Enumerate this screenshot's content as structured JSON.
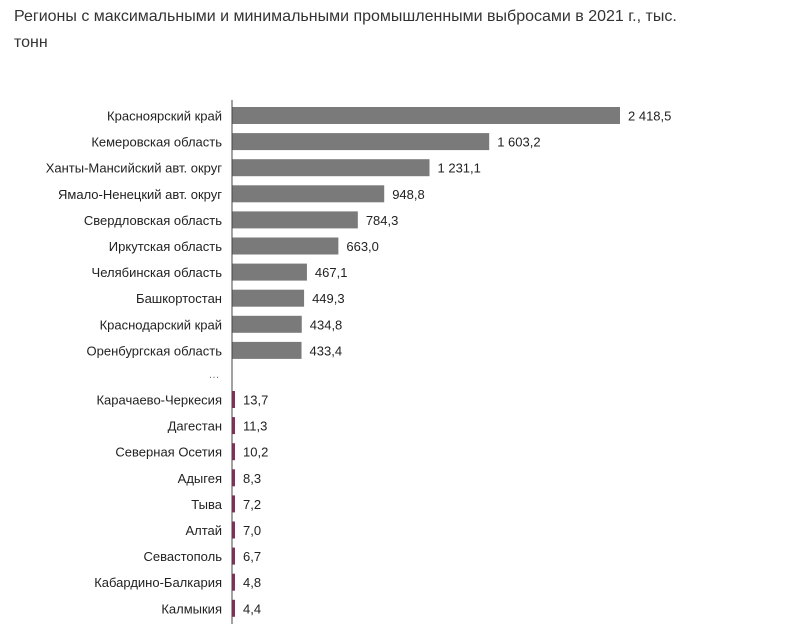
{
  "chart_data": {
    "type": "bar",
    "orientation": "horizontal",
    "title": "Регионы с максимальными и минимальными промышленными выбросами в 2021 г., тыс. тонн",
    "xlabel": "",
    "ylabel": "",
    "xlim": [
      0,
      2600
    ],
    "grid": false,
    "legend": "none",
    "gap_marker": "…",
    "colors": {
      "top_bar": "#7a7a7a",
      "bottom_bar": "#8b2d5c",
      "axis": "#444444"
    },
    "top_group": {
      "categories": [
        "Красноярский край",
        "Кемеровская область",
        "Ханты-Мансийский авт. округ",
        "Ямало-Ненецкий авт. округ",
        "Свердловская область",
        "Иркутская область",
        "Челябинская область",
        "Башкортостан",
        "Краснодарский край",
        "Оренбургская область"
      ],
      "values": [
        2418.5,
        1603.2,
        1231.1,
        948.8,
        784.3,
        663.0,
        467.1,
        449.3,
        434.8,
        433.4
      ],
      "value_labels": [
        "2 418,5",
        "1 603,2",
        "1 231,1",
        "948,8",
        "784,3",
        "663,0",
        "467,1",
        "449,3",
        "434,8",
        "433,4"
      ]
    },
    "bottom_group": {
      "categories": [
        "Карачаево-Черкесия",
        "Дагестан",
        "Северная Осетия",
        "Адыгея",
        "Тыва",
        "Алтай",
        "Севастополь",
        "Кабардино-Балкария",
        "Калмыкия"
      ],
      "values": [
        13.7,
        11.3,
        10.2,
        8.3,
        7.2,
        7.0,
        6.7,
        4.8,
        4.4
      ],
      "value_labels": [
        "13,7",
        "11,3",
        "10,2",
        "8,3",
        "7,2",
        "7,0",
        "6,7",
        "4,8",
        "4,4"
      ]
    }
  }
}
